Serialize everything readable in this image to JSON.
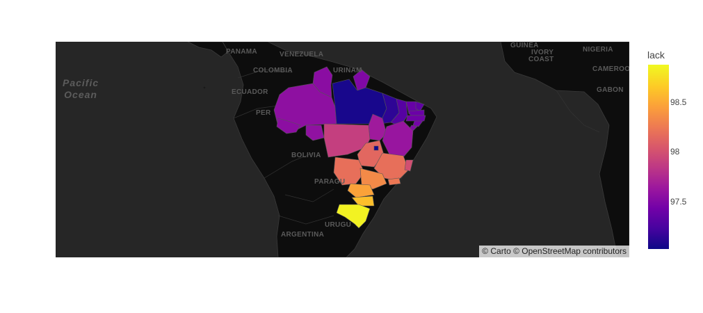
{
  "colorbar": {
    "title": "lack",
    "min": 97.02,
    "max": 98.88,
    "ticks": [
      {
        "label": "98.5",
        "value": 98.5
      },
      {
        "label": "98",
        "value": 98.0
      },
      {
        "label": "97.5",
        "value": 97.5
      }
    ],
    "colors": [
      "#0d0887",
      "#46039f",
      "#7201a8",
      "#9c179e",
      "#bd3786",
      "#d8576b",
      "#ed7953",
      "#fb9f3a",
      "#fdca26",
      "#f0f921"
    ]
  },
  "map": {
    "basemap": "carto-darkmatter",
    "attribution": "© Carto © OpenStreetMap contributors",
    "ocean_labels": [
      {
        "id": "pacific",
        "line1": "Pacific",
        "line2": "Ocean"
      }
    ],
    "country_labels": [
      {
        "id": "panama",
        "text": "PANAMA"
      },
      {
        "id": "venezuela",
        "text": "VENEZUELA"
      },
      {
        "id": "colombia",
        "text": "COLOMBIA"
      },
      {
        "id": "suriname",
        "text": "URINAM"
      },
      {
        "id": "ecuador",
        "text": "ECUADOR"
      },
      {
        "id": "peru",
        "text": "PER"
      },
      {
        "id": "bolivia",
        "text": "BOLIVIA"
      },
      {
        "id": "paraguay",
        "text": "PARAGU"
      },
      {
        "id": "argentina",
        "text": "ARGENTINA"
      },
      {
        "id": "uruguay",
        "text": "URUGU"
      },
      {
        "id": "guinea",
        "text": "GUINEA"
      },
      {
        "id": "ivory",
        "text": "IVORY"
      },
      {
        "id": "coast",
        "text": "COAST"
      },
      {
        "id": "nigeria",
        "text": "NIGERIA"
      },
      {
        "id": "cameroon",
        "text": "CAMEROO"
      },
      {
        "id": "gabon",
        "text": "GABON"
      }
    ]
  },
  "regions": [
    {
      "id": "amazonas",
      "value": 97.57
    },
    {
      "id": "roraima",
      "value": 97.55
    },
    {
      "id": "amapa",
      "value": 97.5
    },
    {
      "id": "para",
      "value": 97.06
    },
    {
      "id": "acre",
      "value": 97.56
    },
    {
      "id": "rondonia",
      "value": 97.58
    },
    {
      "id": "maranhao",
      "value": 97.14
    },
    {
      "id": "piaui",
      "value": 97.3
    },
    {
      "id": "ceara",
      "value": 97.38
    },
    {
      "id": "rio-grande-do-norte",
      "value": 97.35
    },
    {
      "id": "paraiba",
      "value": 97.4
    },
    {
      "id": "pernambuco",
      "value": 97.42
    },
    {
      "id": "alagoas",
      "value": 97.45
    },
    {
      "id": "sergipe",
      "value": 97.5
    },
    {
      "id": "tocantins",
      "value": 97.66
    },
    {
      "id": "bahia",
      "value": 97.62
    },
    {
      "id": "mato-grosso",
      "value": 97.9
    },
    {
      "id": "goias",
      "value": 98.15
    },
    {
      "id": "distrito-federal",
      "value": 97.05
    },
    {
      "id": "minas-gerais",
      "value": 98.2
    },
    {
      "id": "espirito-santo",
      "value": 98.0
    },
    {
      "id": "mato-grosso-do-sul",
      "value": 98.2
    },
    {
      "id": "sao-paulo",
      "value": 98.35
    },
    {
      "id": "rio-de-janeiro",
      "value": 98.25
    },
    {
      "id": "parana",
      "value": 98.48
    },
    {
      "id": "santa-catarina",
      "value": 98.62
    },
    {
      "id": "rio-grande-do-sul",
      "value": 98.85
    }
  ]
}
